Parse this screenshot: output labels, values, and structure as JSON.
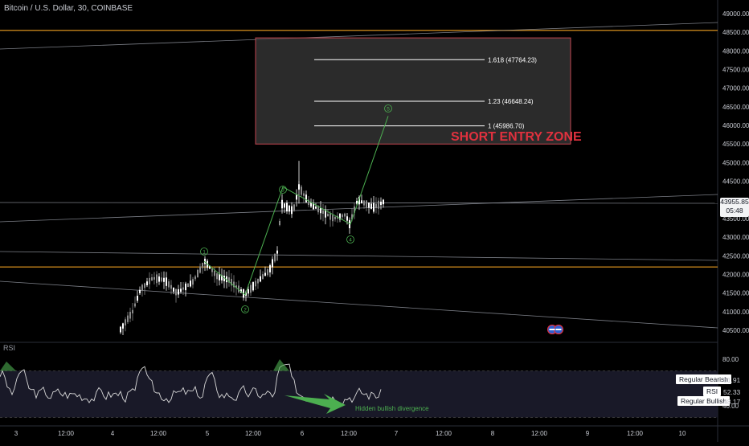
{
  "header": {
    "symbol": "Bitcoin / U.S. Dollar, 30, COINBASE"
  },
  "price_axis": {
    "ticks": [
      "49000.00",
      "48500.00",
      "48000.00",
      "47500.00",
      "47000.00",
      "46500.00",
      "46000.00",
      "45500.00",
      "45000.00",
      "44500.00",
      "44000.00",
      "43500.00",
      "43000.00",
      "42500.00",
      "42000.00",
      "41500.00",
      "41000.00",
      "40500.00"
    ],
    "tick_values": [
      49000,
      48500,
      48000,
      47500,
      47000,
      46500,
      46000,
      45500,
      45000,
      44500,
      44000,
      43500,
      43000,
      42500,
      42000,
      41500,
      41000,
      40500
    ],
    "current_price": "43955.85",
    "countdown": "05:48"
  },
  "time_axis": {
    "labels": [
      "3",
      "12:00",
      "4",
      "12:00",
      "5",
      "12:00",
      "6",
      "12:00",
      "7",
      "12:00",
      "8",
      "12:00",
      "9",
      "12:00",
      "10"
    ]
  },
  "zone": {
    "label": "SHORT ENTRY ZONE",
    "fib_levels": [
      {
        "label": "1.618 (47764.23)",
        "price": 47764.23
      },
      {
        "label": "1.23 (46648.24)",
        "price": 46648.24
      },
      {
        "label": "1 (45986.70)",
        "price": 45986.7
      }
    ],
    "price_top": 48350,
    "price_bottom": 45500,
    "fill_color": "#3a3a3a",
    "border_color": "#c2454f",
    "label_color": "#e0313e"
  },
  "waves": {
    "labels": [
      "1",
      "2",
      "3",
      "4",
      "5"
    ],
    "color": "#4caf50"
  },
  "indicator": {
    "name": "RSI",
    "ticks": [
      "80.00",
      "40.00"
    ],
    "tick_values": [
      80,
      40
    ],
    "legend": [
      {
        "label": "Regular Bearish",
        "value": "61.91"
      },
      {
        "label": "RSI",
        "value": "52.33"
      },
      {
        "label": "Regular Bullish",
        "value": "48.17"
      }
    ],
    "annotation": "Hidden bullish divergence",
    "annotation_color": "#4caf50"
  },
  "colors": {
    "background": "#000000",
    "orange_line": "#f0a020",
    "trend_line": "#9a9ea8",
    "candle_up": "#ffffff",
    "candle_down": "#8a8a8a",
    "rsi_line": "#d8d8d8",
    "rsi_band": "#1c1c2c"
  },
  "chart_data": {
    "type": "candlestick",
    "title": "Bitcoin / U.S. Dollar, 30, COINBASE",
    "ylim": [
      40300,
      49300
    ],
    "last_price": 43955.85,
    "horizontal_lines": [
      {
        "price": 48550,
        "color": "orange"
      },
      {
        "price": 42200,
        "color": "orange"
      }
    ],
    "wave_points": [
      {
        "label": "1",
        "price": 42350
      },
      {
        "label": "2",
        "price": 41450
      },
      {
        "label": "3",
        "price": 44350
      },
      {
        "label": "4",
        "price": 43350
      },
      {
        "label": "5",
        "price": 46250
      }
    ],
    "rsi_latest": 52.33
  }
}
